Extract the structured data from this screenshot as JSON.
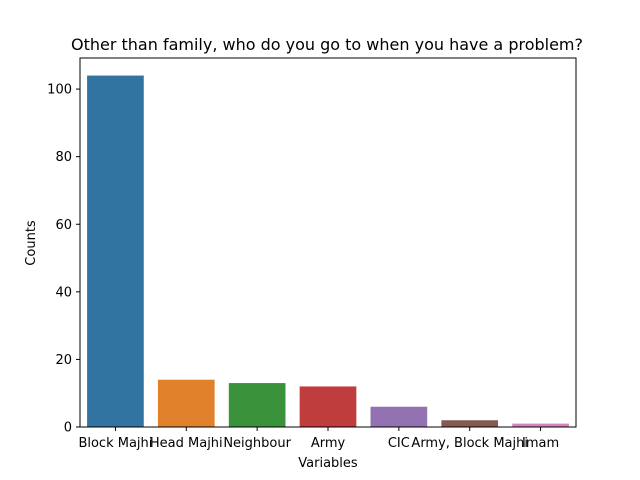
{
  "chart_data": {
    "type": "bar",
    "title": "Other than family, who do you go to when you have a problem?",
    "xlabel": "Variables",
    "ylabel": "Counts",
    "categories": [
      "Block Majhi",
      "Head Majhi",
      "Neighbour",
      "Army",
      "CIC",
      "Army, Block Majhi",
      "Imam"
    ],
    "values": [
      104,
      14,
      13,
      12,
      6,
      2,
      1
    ],
    "colors": [
      "#3274a1",
      "#e1812c",
      "#3a923a",
      "#c03d3e",
      "#9372b2",
      "#845b53",
      "#d684bd"
    ],
    "yticks": [
      0,
      20,
      40,
      60,
      80,
      100
    ],
    "ylim": [
      0,
      109.2
    ],
    "grid": false,
    "legend": "none"
  }
}
